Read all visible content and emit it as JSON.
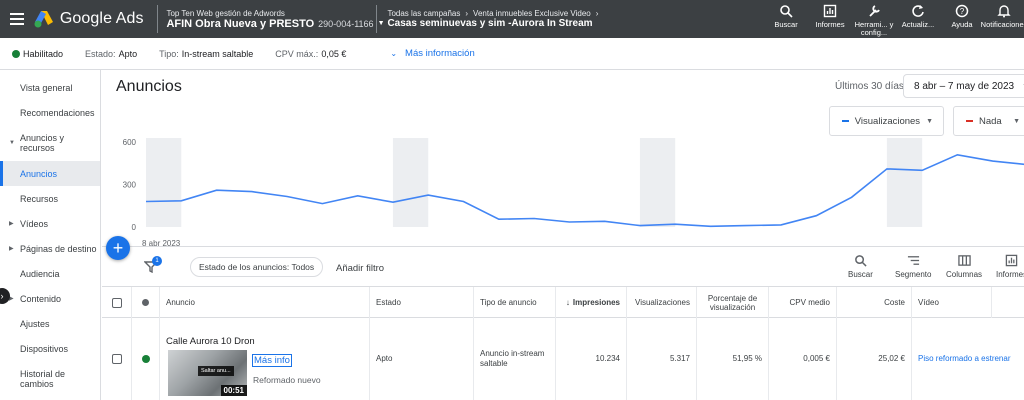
{
  "topbar": {
    "app_title": "Google Ads",
    "account_label": "Top Ten Web gestión de Adwords",
    "account_name": "AFIN Obra Nueva y PRESTO",
    "account_id": "290-004-1166",
    "crumb_1": "Todas las campañas",
    "crumb_2": "Venta inmuebles Exclusive Video",
    "campaign_title": "Casas seminuevas y sim -Aurora In Stream",
    "tools": [
      {
        "label": "Buscar",
        "icon": "search-icon"
      },
      {
        "label": "Informes",
        "icon": "reports-icon"
      },
      {
        "label": "Herrami... y config...",
        "icon": "tools-icon"
      },
      {
        "label": "Actualiz...",
        "icon": "refresh-icon"
      },
      {
        "label": "Ayuda",
        "icon": "help-icon"
      },
      {
        "label": "Notificaciones",
        "icon": "bell-icon"
      }
    ]
  },
  "status": {
    "state": "Habilitado",
    "state_label": "Estado:",
    "state_value": "Apto",
    "type_label": "Tipo:",
    "type_value": "In-stream saltable",
    "cpv_label": "CPV máx.:",
    "cpv_value": "0,05 €",
    "more_info": "Más información"
  },
  "sidebar": {
    "items": [
      {
        "label": "Vista general"
      },
      {
        "label": "Recomendaciones"
      },
      {
        "label": "Anuncios y recursos"
      },
      {
        "label": "Anuncios"
      },
      {
        "label": "Recursos"
      },
      {
        "label": "Vídeos"
      },
      {
        "label": "Páginas de destino"
      },
      {
        "label": "Audiencia"
      },
      {
        "label": "Contenido"
      },
      {
        "label": "Ajustes"
      },
      {
        "label": "Dispositivos"
      },
      {
        "label": "Historial de cambios"
      }
    ]
  },
  "main": {
    "title": "Anuncios",
    "range_label": "Últimos 30 días",
    "range_value": "8 abr – 7 may de 2023",
    "metric_1": "Visualizaciones",
    "metric_1_color": "#1a73e8",
    "metric_2": "Nada",
    "metric_2_color": "#d93025"
  },
  "chart_data": {
    "type": "line",
    "x_start_label": "8 abr 2023",
    "yticks": [
      "600",
      "300",
      "0"
    ],
    "ylim": [
      0,
      600
    ],
    "series": [
      {
        "values": [
          180,
          185,
          260,
          250,
          215,
          165,
          220,
          175,
          225,
          180,
          55,
          60,
          35,
          40,
          10,
          20,
          5,
          10,
          15,
          80,
          210,
          410,
          400,
          510,
          465,
          440
        ]
      }
    ],
    "weekend_bands": true,
    "grid": false
  },
  "filters": {
    "badge": "1",
    "chip": "Estado de los anuncios: Todos",
    "add_filter": "Añadir filtro",
    "tools": [
      "Buscar",
      "Segmento",
      "Columnas",
      "Informes"
    ]
  },
  "table": {
    "headers": {
      "ad": "Anuncio",
      "status": "Estado",
      "type": "Tipo de anuncio",
      "impressions": "Impresiones",
      "views": "Visualizaciones",
      "view_rate": "Porcentaje de visualización",
      "cpv": "CPV medio",
      "cost": "Coste",
      "video": "Vídeo"
    },
    "row": {
      "name": "Calle Aurora 10 Dron",
      "thumb_skip": "Saltar anu...",
      "thumb_duration": "00:51",
      "more_link": "Más info",
      "description": "Reformado nuevo",
      "status": "Apto",
      "type": "Anuncio in-stream saltable",
      "impressions": "10.234",
      "views": "5.317",
      "view_rate": "51,95 %",
      "cpv": "0,005 €",
      "cost": "25,02 €",
      "video": "Piso reformado a estrenar"
    }
  }
}
